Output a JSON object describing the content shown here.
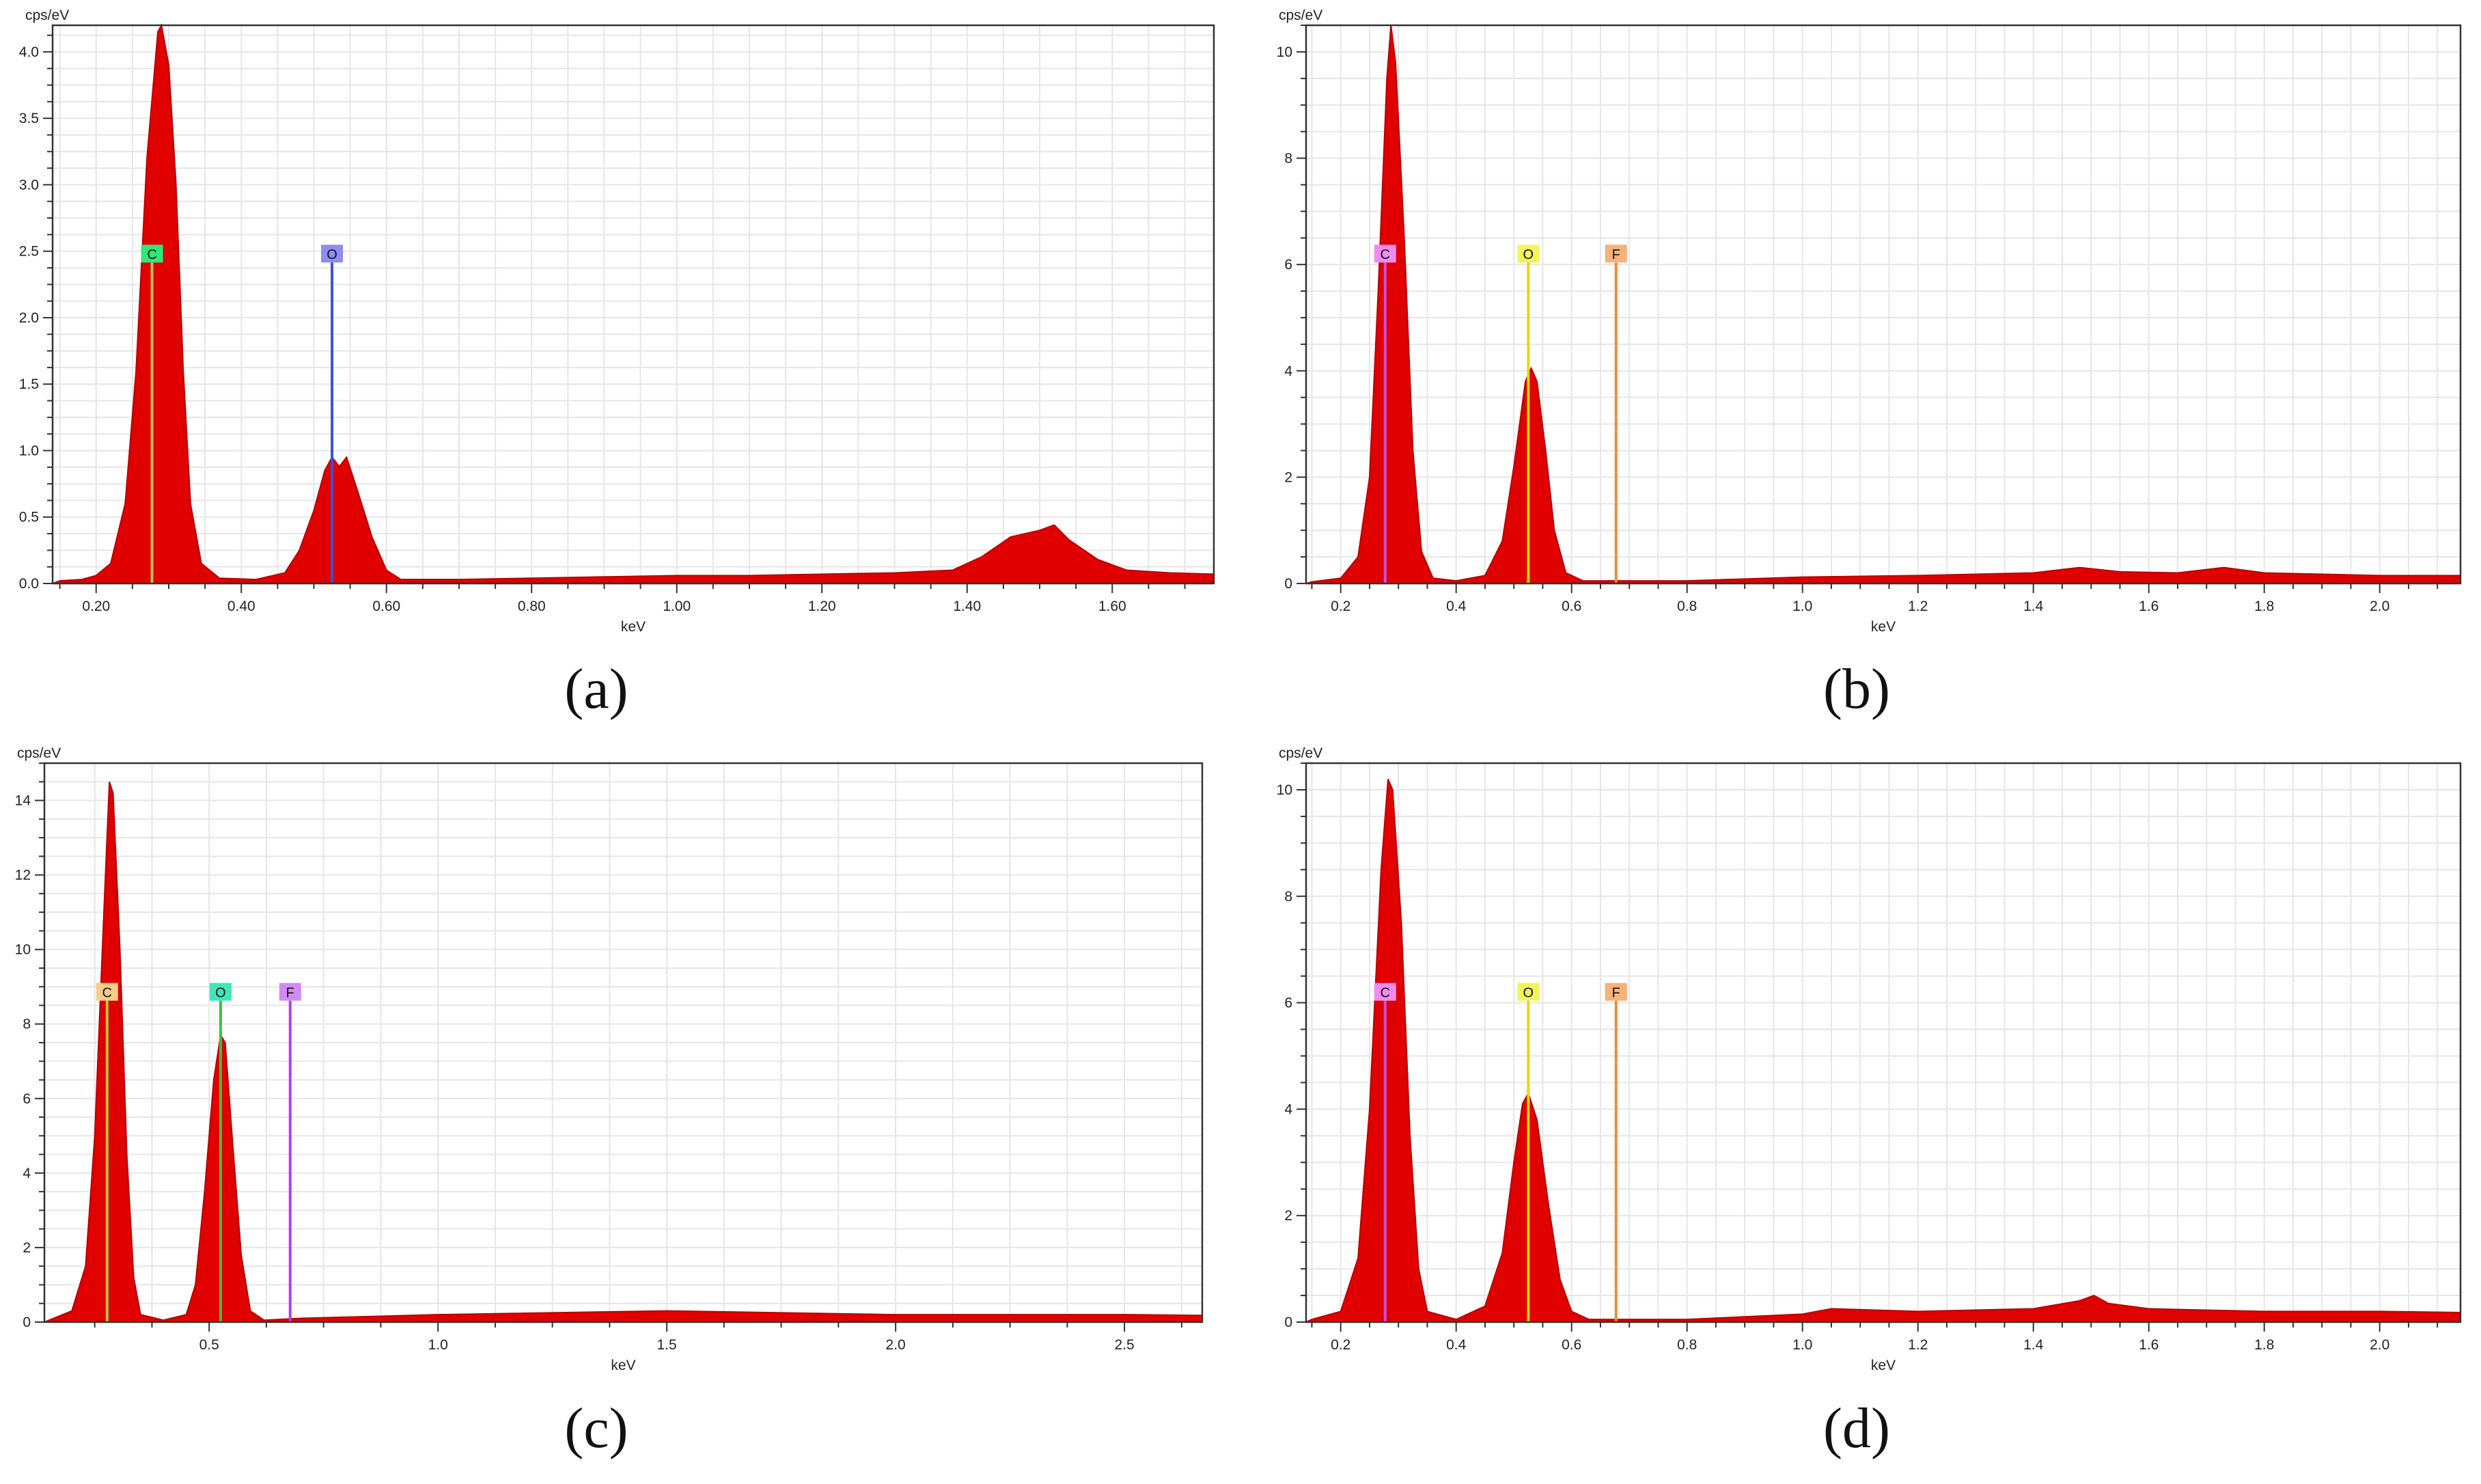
{
  "figure": {
    "panels": [
      {
        "id": "a",
        "caption": "(a)"
      },
      {
        "id": "b",
        "caption": "(b)"
      },
      {
        "id": "c",
        "caption": "(c)"
      },
      {
        "id": "d",
        "caption": "(d)"
      }
    ]
  },
  "chart_data": [
    {
      "panel": "a",
      "type": "area",
      "ylabel": "cps/eV",
      "xlabel": "keV",
      "xlim": [
        0.14,
        1.74
      ],
      "ylim": [
        0,
        4.2
      ],
      "xticks": [
        0.2,
        0.4,
        0.6,
        0.8,
        1.0,
        1.2,
        1.4,
        1.6
      ],
      "xtick_labels": [
        "0.20",
        "0.40",
        "0.60",
        "0.80",
        "1.00",
        "1.20",
        "1.40",
        "1.60"
      ],
      "yticks": [
        0,
        0.5,
        1.0,
        1.5,
        2.0,
        2.5,
        3.0,
        3.5,
        4.0
      ],
      "ytick_labels": [
        "0.0",
        "0.5",
        "1.0",
        "1.5",
        "2.0",
        "2.5",
        "3.0",
        "3.5",
        "4.0"
      ],
      "fill_color": "#e00000",
      "grid": true,
      "series": [
        {
          "values": [
            [
              0.14,
              0
            ],
            [
              0.15,
              0.02
            ],
            [
              0.18,
              0.03
            ],
            [
              0.2,
              0.06
            ],
            [
              0.22,
              0.15
            ],
            [
              0.24,
              0.6
            ],
            [
              0.255,
              1.6
            ],
            [
              0.27,
              3.2
            ],
            [
              0.285,
              4.15
            ],
            [
              0.29,
              4.22
            ],
            [
              0.3,
              3.9
            ],
            [
              0.31,
              3.0
            ],
            [
              0.32,
              1.6
            ],
            [
              0.33,
              0.6
            ],
            [
              0.345,
              0.15
            ],
            [
              0.37,
              0.04
            ],
            [
              0.42,
              0.03
            ],
            [
              0.46,
              0.08
            ],
            [
              0.48,
              0.25
            ],
            [
              0.5,
              0.55
            ],
            [
              0.515,
              0.85
            ],
            [
              0.525,
              0.95
            ],
            [
              0.535,
              0.88
            ],
            [
              0.545,
              0.95
            ],
            [
              0.56,
              0.7
            ],
            [
              0.58,
              0.35
            ],
            [
              0.6,
              0.1
            ],
            [
              0.62,
              0.03
            ],
            [
              0.7,
              0.03
            ],
            [
              0.8,
              0.04
            ],
            [
              0.9,
              0.05
            ],
            [
              1.0,
              0.06
            ],
            [
              1.1,
              0.06
            ],
            [
              1.2,
              0.07
            ],
            [
              1.3,
              0.08
            ],
            [
              1.38,
              0.1
            ],
            [
              1.42,
              0.2
            ],
            [
              1.46,
              0.35
            ],
            [
              1.5,
              0.4
            ],
            [
              1.52,
              0.44
            ],
            [
              1.54,
              0.33
            ],
            [
              1.58,
              0.18
            ],
            [
              1.62,
              0.1
            ],
            [
              1.68,
              0.08
            ],
            [
              1.74,
              0.07
            ]
          ]
        }
      ],
      "element_markers": [
        {
          "label": "C",
          "x": 0.277,
          "color": "#2ee87a",
          "line_color": "#b8c25a"
        },
        {
          "label": "O",
          "x": 0.525,
          "color": "#8f8cf5",
          "line_color": "#3d4fd6"
        }
      ]
    },
    {
      "panel": "b",
      "type": "area",
      "ylabel": "cps/eV",
      "xlabel": "keV",
      "xlim": [
        0.14,
        2.14
      ],
      "ylim": [
        0,
        10.5
      ],
      "xticks": [
        0.2,
        0.4,
        0.6,
        0.8,
        1.0,
        1.2,
        1.4,
        1.6,
        1.8,
        2.0
      ],
      "xtick_labels": [
        "0.2",
        "0.4",
        "0.6",
        "0.8",
        "1.0",
        "1.2",
        "1.4",
        "1.6",
        "1.8",
        "2.0"
      ],
      "yticks": [
        0,
        2,
        4,
        6,
        8,
        10
      ],
      "ytick_labels": [
        "0",
        "2",
        "4",
        "6",
        "8",
        "10"
      ],
      "fill_color": "#e00000",
      "grid": true,
      "series": [
        {
          "values": [
            [
              0.14,
              0
            ],
            [
              0.15,
              0.03
            ],
            [
              0.2,
              0.1
            ],
            [
              0.23,
              0.5
            ],
            [
              0.25,
              2.0
            ],
            [
              0.265,
              5.5
            ],
            [
              0.28,
              9.5
            ],
            [
              0.287,
              10.5
            ],
            [
              0.295,
              9.8
            ],
            [
              0.31,
              6.5
            ],
            [
              0.325,
              2.5
            ],
            [
              0.34,
              0.6
            ],
            [
              0.36,
              0.1
            ],
            [
              0.4,
              0.05
            ],
            [
              0.45,
              0.15
            ],
            [
              0.48,
              0.8
            ],
            [
              0.5,
              2.2
            ],
            [
              0.52,
              3.8
            ],
            [
              0.53,
              4.05
            ],
            [
              0.54,
              3.8
            ],
            [
              0.555,
              2.5
            ],
            [
              0.57,
              1.0
            ],
            [
              0.59,
              0.2
            ],
            [
              0.62,
              0.05
            ],
            [
              0.8,
              0.05
            ],
            [
              1.0,
              0.12
            ],
            [
              1.2,
              0.15
            ],
            [
              1.4,
              0.2
            ],
            [
              1.48,
              0.3
            ],
            [
              1.55,
              0.22
            ],
            [
              1.65,
              0.2
            ],
            [
              1.73,
              0.3
            ],
            [
              1.8,
              0.2
            ],
            [
              2.0,
              0.15
            ],
            [
              2.14,
              0.15
            ]
          ]
        }
      ],
      "element_markers": [
        {
          "label": "C",
          "x": 0.277,
          "color": "#f08cf0",
          "line_color": "#d04fd0"
        },
        {
          "label": "O",
          "x": 0.525,
          "color": "#f5f55a",
          "line_color": "#e6d800"
        },
        {
          "label": "F",
          "x": 0.677,
          "color": "#f5b27a",
          "line_color": "#f08a3c"
        }
      ]
    },
    {
      "panel": "c",
      "type": "area",
      "ylabel": "cps/eV",
      "xlabel": "keV",
      "xlim": [
        0.14,
        2.67
      ],
      "ylim": [
        0,
        15
      ],
      "xticks": [
        0.5,
        1.0,
        1.5,
        2.0,
        2.5
      ],
      "xtick_labels": [
        "0.5",
        "1.0",
        "1.5",
        "2.0",
        "2.5"
      ],
      "yticks": [
        0,
        2,
        4,
        6,
        8,
        10,
        12,
        14
      ],
      "ytick_labels": [
        "0",
        "2",
        "4",
        "6",
        "8",
        "10",
        "12",
        "14"
      ],
      "fill_color": "#e00000",
      "grid": true,
      "series": [
        {
          "values": [
            [
              0.14,
              0
            ],
            [
              0.15,
              0.05
            ],
            [
              0.2,
              0.3
            ],
            [
              0.23,
              1.5
            ],
            [
              0.25,
              5.0
            ],
            [
              0.27,
              11.0
            ],
            [
              0.282,
              14.5
            ],
            [
              0.29,
              14.2
            ],
            [
              0.305,
              10.0
            ],
            [
              0.32,
              4.5
            ],
            [
              0.335,
              1.2
            ],
            [
              0.35,
              0.2
            ],
            [
              0.4,
              0.05
            ],
            [
              0.45,
              0.2
            ],
            [
              0.47,
              1.0
            ],
            [
              0.49,
              3.5
            ],
            [
              0.51,
              6.5
            ],
            [
              0.525,
              7.7
            ],
            [
              0.535,
              7.5
            ],
            [
              0.55,
              5.0
            ],
            [
              0.57,
              1.8
            ],
            [
              0.59,
              0.3
            ],
            [
              0.62,
              0.05
            ],
            [
              0.7,
              0.1
            ],
            [
              1.0,
              0.2
            ],
            [
              1.5,
              0.3
            ],
            [
              2.0,
              0.2
            ],
            [
              2.5,
              0.2
            ],
            [
              2.67,
              0.18
            ]
          ]
        }
      ],
      "element_markers": [
        {
          "label": "C",
          "x": 0.277,
          "color": "#f5cd8a",
          "line_color": "#c2c23c"
        },
        {
          "label": "O",
          "x": 0.525,
          "color": "#3ce8b8",
          "line_color": "#3cc23c"
        },
        {
          "label": "F",
          "x": 0.677,
          "color": "#d48af5",
          "line_color": "#b43cf0"
        }
      ]
    },
    {
      "panel": "d",
      "type": "area",
      "ylabel": "cps/eV",
      "xlabel": "keV",
      "xlim": [
        0.14,
        2.14
      ],
      "ylim": [
        0,
        10.5
      ],
      "xticks": [
        0.2,
        0.4,
        0.6,
        0.8,
        1.0,
        1.2,
        1.4,
        1.6,
        1.8,
        2.0
      ],
      "xtick_labels": [
        "0.2",
        "0.4",
        "0.6",
        "0.8",
        "1.0",
        "1.2",
        "1.4",
        "1.6",
        "1.8",
        "2.0"
      ],
      "yticks": [
        0,
        2,
        4,
        6,
        8,
        10
      ],
      "ytick_labels": [
        "0",
        "2",
        "4",
        "6",
        "8",
        "10"
      ],
      "fill_color": "#e00000",
      "grid": true,
      "series": [
        {
          "values": [
            [
              0.14,
              0
            ],
            [
              0.15,
              0.05
            ],
            [
              0.2,
              0.2
            ],
            [
              0.23,
              1.2
            ],
            [
              0.25,
              4.0
            ],
            [
              0.27,
              8.5
            ],
            [
              0.282,
              10.2
            ],
            [
              0.29,
              10.0
            ],
            [
              0.305,
              7.5
            ],
            [
              0.32,
              3.5
            ],
            [
              0.335,
              1.0
            ],
            [
              0.35,
              0.2
            ],
            [
              0.4,
              0.05
            ],
            [
              0.45,
              0.3
            ],
            [
              0.48,
              1.3
            ],
            [
              0.5,
              3.0
            ],
            [
              0.515,
              4.1
            ],
            [
              0.525,
              4.3
            ],
            [
              0.54,
              3.8
            ],
            [
              0.56,
              2.2
            ],
            [
              0.58,
              0.8
            ],
            [
              0.6,
              0.2
            ],
            [
              0.63,
              0.05
            ],
            [
              0.8,
              0.05
            ],
            [
              1.0,
              0.15
            ],
            [
              1.05,
              0.25
            ],
            [
              1.2,
              0.2
            ],
            [
              1.4,
              0.25
            ],
            [
              1.48,
              0.4
            ],
            [
              1.505,
              0.5
            ],
            [
              1.53,
              0.35
            ],
            [
              1.6,
              0.25
            ],
            [
              1.8,
              0.2
            ],
            [
              2.0,
              0.2
            ],
            [
              2.14,
              0.18
            ]
          ]
        }
      ],
      "element_markers": [
        {
          "label": "C",
          "x": 0.277,
          "color": "#f08cf0",
          "line_color": "#d04fd0"
        },
        {
          "label": "O",
          "x": 0.525,
          "color": "#f5f55a",
          "line_color": "#e6d800"
        },
        {
          "label": "F",
          "x": 0.677,
          "color": "#f5b27a",
          "line_color": "#f08a3c"
        }
      ]
    }
  ]
}
